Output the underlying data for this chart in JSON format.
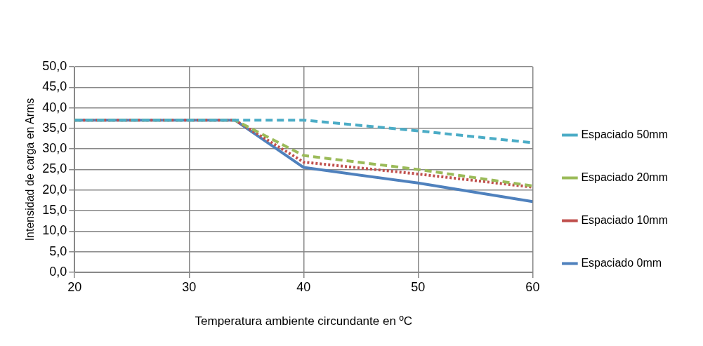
{
  "chart_data": {
    "type": "line",
    "xlabel": "Temperatura ambiente circundante en ºC",
    "ylabel": "Intensidad de carga en Arms",
    "xlim": [
      20,
      60
    ],
    "xticks": [
      20,
      30,
      40,
      50,
      60
    ],
    "ylim": [
      0,
      50
    ],
    "yticks": [
      {
        "value": 0,
        "label": "0,0"
      },
      {
        "value": 5,
        "label": "5,0"
      },
      {
        "value": 10,
        "label": "10,0"
      },
      {
        "value": 15,
        "label": "15,0"
      },
      {
        "value": 20,
        "label": "20,0"
      },
      {
        "value": 25,
        "label": "25,0"
      },
      {
        "value": 30,
        "label": "30,0"
      },
      {
        "value": 35,
        "label": "35,0"
      },
      {
        "value": 40,
        "label": "40,0"
      },
      {
        "value": 45,
        "label": "45,0"
      },
      {
        "value": 50,
        "label": "50,0"
      }
    ],
    "grid": true,
    "legend": "right",
    "marker": "none",
    "series": [
      {
        "name": "Espaciado 50mm",
        "color": "#4bacc6",
        "line_style": "dashed",
        "x": [
          20,
          40,
          50,
          60
        ],
        "values": [
          37,
          37,
          34.4,
          31.5
        ]
      },
      {
        "name": "Espaciado 20mm",
        "color": "#9bbb59",
        "line_style": "dashed",
        "x": [
          20,
          34,
          40,
          50,
          60
        ],
        "values": [
          37,
          37,
          28.4,
          25,
          21
        ]
      },
      {
        "name": "Espaciado 10mm",
        "color": "#c0504d",
        "line_style": "dotted",
        "x": [
          20,
          34,
          40,
          50,
          60
        ],
        "values": [
          37,
          37,
          26.8,
          23.9,
          20.7
        ]
      },
      {
        "name": "Espaciado 0mm",
        "color": "#4f81bd",
        "line_style": "solid",
        "x": [
          20,
          34,
          40,
          50,
          60
        ],
        "values": [
          37,
          37,
          25.5,
          21.7,
          17.2
        ]
      }
    ]
  }
}
